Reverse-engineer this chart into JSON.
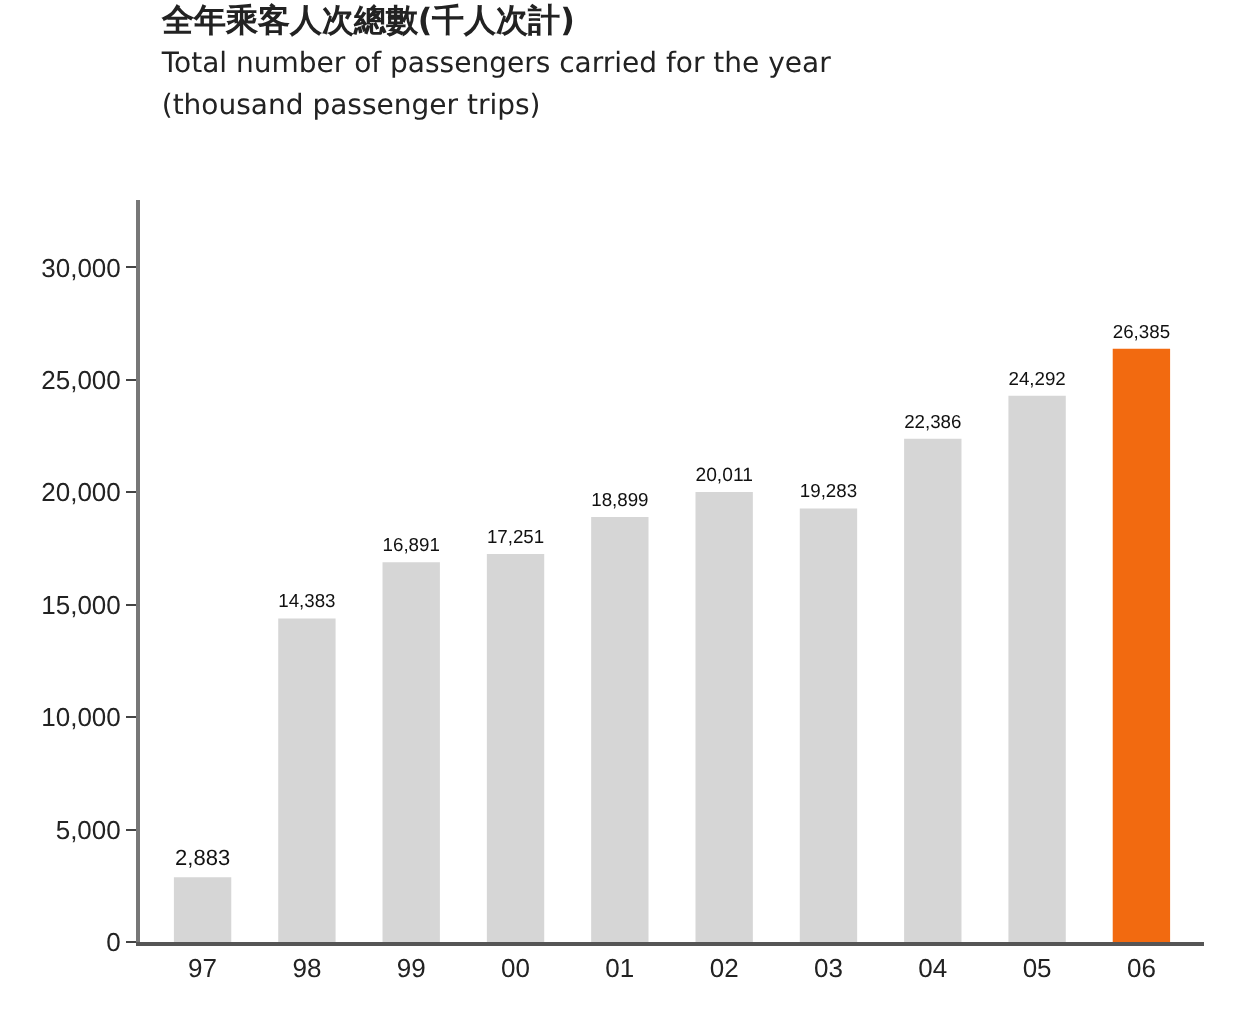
{
  "chart_data": {
    "type": "bar",
    "title": "全年乘客人次總數(千人次計)",
    "subtitle": "Total number of passengers carried for the year\n(thousand passenger trips)",
    "categories": [
      "97",
      "98",
      "99",
      "00",
      "01",
      "02",
      "03",
      "04",
      "05",
      "06"
    ],
    "values": [
      2883,
      14383,
      16891,
      17251,
      18899,
      20011,
      19283,
      22386,
      24292,
      26385
    ],
    "colors": [
      "#d6d6d6",
      "#d6d6d6",
      "#d6d6d6",
      "#d6d6d6",
      "#d6d6d6",
      "#d6d6d6",
      "#d6d6d6",
      "#d6d6d6",
      "#d6d6d6",
      "#f26a10"
    ],
    "value_labels": [
      "2,883",
      "14,383",
      "16,891",
      "17,251",
      "18,899",
      "20,011",
      "19,283",
      "22,386",
      "24,292",
      "26,385"
    ],
    "ylim": [
      0,
      33000
    ],
    "yticks": [
      0,
      {
        "value": 5000,
        "label": "5,000"
      },
      {
        "value": 10000,
        "label": "10,000"
      },
      {
        "value": 15000,
        "label": "15,000"
      },
      {
        "value": 20000,
        "label": "20,000"
      },
      {
        "value": 25000,
        "label": "25,000"
      },
      {
        "value": 30000,
        "label": "30,000"
      }
    ]
  }
}
